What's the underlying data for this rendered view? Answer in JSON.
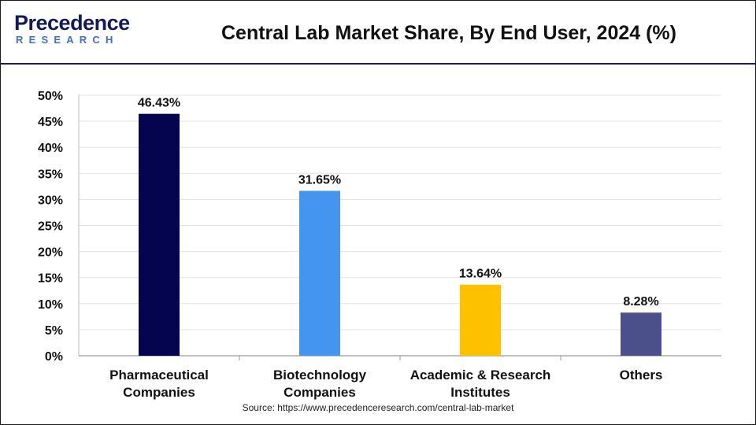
{
  "header": {
    "logo_word": "Precedence",
    "logo_sub": "RESEARCH"
  },
  "chart_data": {
    "type": "bar",
    "title": "Central Lab Market Share, By End User, 2024 (%)",
    "categories": [
      [
        "Pharmaceutical",
        "Companies"
      ],
      [
        "Biotechnology",
        "Companies"
      ],
      [
        "Academic & Research",
        "Institutes"
      ],
      [
        "Others"
      ]
    ],
    "values": [
      46.43,
      31.65,
      13.64,
      8.28
    ],
    "value_labels": [
      "46.43%",
      "31.65%",
      "13.64%",
      "8.28%"
    ],
    "colors": [
      "#05054f",
      "#4495ef",
      "#ffc000",
      "#4b4f8a"
    ],
    "ylim": [
      0,
      50
    ],
    "yticks": [
      "0%",
      "5%",
      "10%",
      "15%",
      "20%",
      "25%",
      "30%",
      "35%",
      "40%",
      "45%",
      "50%"
    ],
    "ytick_values": [
      0,
      5,
      10,
      15,
      20,
      25,
      30,
      35,
      40,
      45,
      50
    ],
    "xlabel": "",
    "ylabel": "",
    "grid": true
  },
  "source": "Source: https://www.precedenceresearch.com/central-lab-market"
}
